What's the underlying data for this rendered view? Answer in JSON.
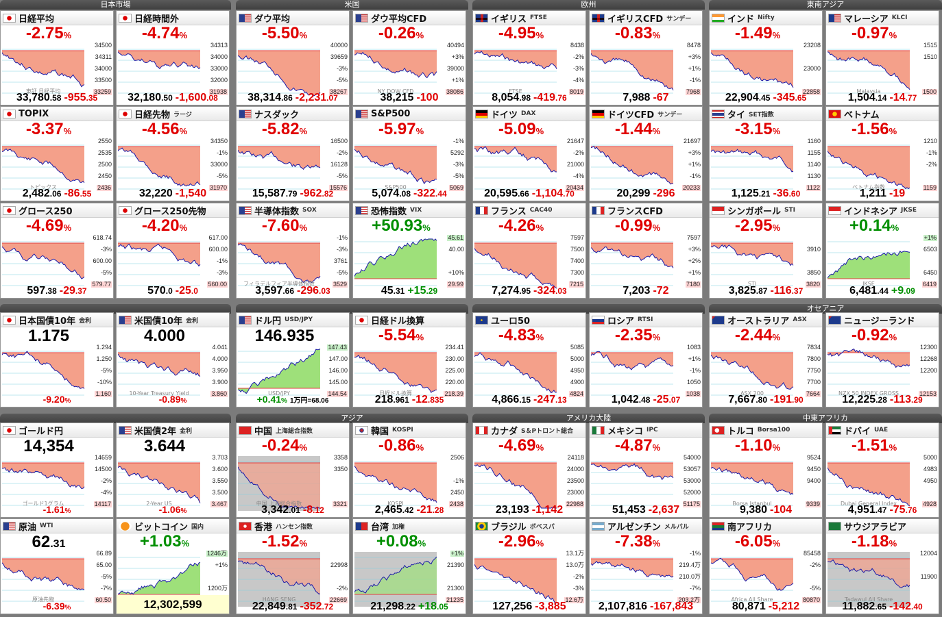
{
  "regions": [
    "日本市場",
    "米国",
    "欧州",
    "東南アジア",
    "オセアニア",
    "アジア",
    "アメリカ大陸",
    "中東アフリカ"
  ],
  "colors": {
    "up": "#008f00",
    "down": "#e00000",
    "fill_down": "#f4a08a",
    "fill_up": "#9ee07a",
    "line": "#1a1aa8"
  },
  "tiles": [
    {
      "name": "日経平均",
      "sub": "",
      "flag": "jp",
      "pct": "-2.75",
      "price": "33,780",
      "price_dec": ".58",
      "change": "-955",
      "change_dec": ".35",
      "ticks": [
        "34500",
        "34311",
        "34000",
        "33500",
        "33259"
      ],
      "watermark": "東証 日経平均",
      "dir": "down"
    },
    {
      "name": "日経時間外",
      "sub": "",
      "flag": "jp",
      "pct": "-4.74",
      "price": "32,180",
      "price_dec": ".50",
      "change": "-1,600",
      "change_dec": ".08",
      "ticks": [
        "34313",
        "34000",
        "33000",
        "32000",
        "31938"
      ],
      "watermark": "",
      "dir": "down"
    },
    {
      "name": "ダウ平均",
      "sub": "",
      "flag": "us",
      "pct": "-5.50",
      "price": "38,314",
      "price_dec": ".86",
      "change": "-2,231",
      "change_dec": ".07",
      "ticks": [
        "40000",
        "39659",
        "-3%",
        "-5%",
        "38267"
      ],
      "watermark": "",
      "dir": "down"
    },
    {
      "name": "ダウ平均CFD",
      "sub": "",
      "flag": "us",
      "pct": "-0.26",
      "price": "38,215",
      "price_dec": "",
      "change": "-100",
      "change_dec": "",
      "ticks": [
        "40494",
        "+3%",
        "39000",
        "+1%",
        "38086"
      ],
      "watermark": "NY DOW CFD",
      "dir": "down"
    },
    {
      "name": "イギリス",
      "sub": "FTSE",
      "flag": "uk",
      "pct": "-4.95",
      "price": "8,054",
      "price_dec": ".98",
      "change": "-419",
      "change_dec": ".76",
      "ticks": [
        "8438",
        "-2%",
        "-3%",
        "-4%",
        "8019"
      ],
      "watermark": "FTSE",
      "dir": "down"
    },
    {
      "name": "イギリスCFD",
      "sub": "サンデー",
      "flag": "uk",
      "pct": "-0.83",
      "price": "7,988",
      "price_dec": "",
      "change": "-67",
      "change_dec": "",
      "ticks": [
        "8478",
        "+3%",
        "+1%",
        "-1%",
        "7968"
      ],
      "watermark": "",
      "dir": "down"
    },
    {
      "name": "インド",
      "sub": "Nifty",
      "flag": "in",
      "pct": "-1.49",
      "price": "22,904",
      "price_dec": ".45",
      "change": "-345",
      "change_dec": ".65",
      "ticks": [
        "23208",
        "",
        "23000",
        "",
        "22858"
      ],
      "watermark": "",
      "dir": "down"
    },
    {
      "name": "マレーシア",
      "sub": "KLCI",
      "flag": "my",
      "pct": "-0.97",
      "price": "1,504",
      "price_dec": ".14",
      "change": "-14",
      "change_dec": ".77",
      "ticks": [
        "1515",
        "1510",
        "",
        "",
        "1500"
      ],
      "watermark": "Malaysia",
      "dir": "down"
    },
    {
      "name": "TOPIX",
      "sub": "",
      "flag": "jp",
      "pct": "-3.37",
      "price": "2,482",
      "price_dec": ".06",
      "change": "-86",
      "change_dec": ".55",
      "ticks": [
        "2550",
        "2535",
        "2500",
        "2450",
        "2436"
      ],
      "watermark": "トピックス",
      "dir": "down"
    },
    {
      "name": "日経先物",
      "sub": "ラージ",
      "flag": "jp",
      "pct": "-4.56",
      "price": "32,220",
      "price_dec": "",
      "change": "-1,540",
      "change_dec": "",
      "ticks": [
        "34350",
        "-1%",
        "33000",
        "-5%",
        "31970"
      ],
      "watermark": "",
      "dir": "down"
    },
    {
      "name": "ナスダック",
      "sub": "",
      "flag": "us",
      "pct": "-5.82",
      "price": "15,587",
      "price_dec": ".79",
      "change": "-962",
      "change_dec": ".82",
      "ticks": [
        "16500",
        "-2%",
        "16128",
        "-5%",
        "15576"
      ],
      "watermark": "",
      "dir": "down"
    },
    {
      "name": "S&P500",
      "sub": "",
      "flag": "us",
      "pct": "-5.97",
      "price": "5,074",
      "price_dec": ".08",
      "change": "-322",
      "change_dec": ".44",
      "ticks": [
        "-1%",
        "5292",
        "-3%",
        "-5%",
        "5069"
      ],
      "watermark": "S&P500",
      "dir": "down"
    },
    {
      "name": "ドイツ",
      "sub": "DAX",
      "flag": "de",
      "pct": "-5.09",
      "price": "20,595",
      "price_dec": ".66",
      "change": "-1,104",
      "change_dec": ".70",
      "ticks": [
        "21647",
        "-2%",
        "21000",
        "-4%",
        "20434"
      ],
      "watermark": "",
      "dir": "down"
    },
    {
      "name": "ドイツCFD",
      "sub": "サンデー",
      "flag": "de",
      "pct": "-1.44",
      "price": "20,299",
      "price_dec": "",
      "change": "-296",
      "change_dec": "",
      "ticks": [
        "21697",
        "+3%",
        "+1%",
        "-1%",
        "20233"
      ],
      "watermark": "",
      "dir": "down"
    },
    {
      "name": "タイ",
      "sub": "SET指数",
      "flag": "th",
      "pct": "-3.15",
      "price": "1,125",
      "price_dec": ".21",
      "change": "-36",
      "change_dec": ".60",
      "ticks": [
        "1160",
        "1155",
        "1140",
        "1130",
        "1122"
      ],
      "watermark": "",
      "dir": "down"
    },
    {
      "name": "ベトナム",
      "sub": "",
      "flag": "vn",
      "pct": "-1.56",
      "price": "1,211",
      "price_dec": "",
      "change": "-19",
      "change_dec": "",
      "ticks": [
        "1210",
        "-1%",
        "-2%",
        "",
        "1159"
      ],
      "watermark": "ベトナム指数",
      "dir": "down"
    },
    {
      "name": "グロース250",
      "sub": "",
      "flag": "jp",
      "pct": "-4.69",
      "price": "597",
      "price_dec": ".38",
      "change": "-29",
      "change_dec": ".37",
      "ticks": [
        "618.74",
        "-3%",
        "600.00",
        "-5%",
        "579.77"
      ],
      "watermark": "",
      "dir": "down"
    },
    {
      "name": "グロース250先物",
      "sub": "",
      "flag": "jp",
      "pct": "-4.20",
      "price": "570",
      "price_dec": ".0",
      "change": "-25",
      "change_dec": ".0",
      "ticks": [
        "617.00",
        "600.00",
        "-1%",
        "-3%",
        "560.00"
      ],
      "watermark": "",
      "dir": "down"
    },
    {
      "name": "半導体指数",
      "sub": "SOX",
      "flag": "us",
      "pct": "-7.60",
      "price": "3,597",
      "price_dec": ".66",
      "change": "-296",
      "change_dec": ".03",
      "ticks": [
        "-1%",
        "-3%",
        "3761",
        "-5%",
        "3529"
      ],
      "watermark": "フィラデルフィア半導体指数",
      "dir": "down"
    },
    {
      "name": "恐怖指数",
      "sub": "VIX",
      "flag": "us",
      "pct": "+50.93",
      "price": "45",
      "price_dec": ".31",
      "change": "+15",
      "change_dec": ".29",
      "ticks": [
        "45.61",
        "40.00",
        "",
        "+10%",
        "29.99"
      ],
      "watermark": "",
      "dir": "up"
    },
    {
      "name": "フランス",
      "sub": "CAC40",
      "flag": "fr",
      "pct": "-4.26",
      "price": "7,274",
      "price_dec": ".95",
      "change": "-324",
      "change_dec": ".03",
      "ticks": [
        "7597",
        "7500",
        "7400",
        "7300",
        "7215"
      ],
      "watermark": "",
      "dir": "down"
    },
    {
      "name": "フランスCFD",
      "sub": "",
      "flag": "fr",
      "pct": "-0.99",
      "price": "7,203",
      "price_dec": "",
      "change": "-72",
      "change_dec": "",
      "ticks": [
        "7597",
        "+3%",
        "+2%",
        "+1%",
        "7180"
      ],
      "watermark": "",
      "dir": "down"
    },
    {
      "name": "シンガポール",
      "sub": "STI",
      "flag": "sg",
      "pct": "-2.95",
      "price": "3,825",
      "price_dec": ".87",
      "change": "-116",
      "change_dec": ".37",
      "ticks": [
        "",
        "3910",
        "",
        "3850",
        "3820"
      ],
      "watermark": "STI",
      "dir": "down"
    },
    {
      "name": "インドネシア",
      "sub": "JKSE",
      "flag": "id",
      "pct": "+0.14",
      "price": "6,481",
      "price_dec": ".44",
      "change": "+9",
      "change_dec": ".09",
      "ticks": [
        "+1%",
        "6503",
        "",
        "6450",
        "6419"
      ],
      "watermark": "JKSE",
      "dir": "up"
    },
    {
      "name": "日本国債10年",
      "sub": "金利",
      "flag": "jp",
      "yield": "1.175",
      "ticks": [
        "1.294",
        "1.250",
        "-5%",
        "-10%",
        "1.160"
      ],
      "bottom_pct": "-9.20",
      "watermark": "",
      "dir": "down"
    },
    {
      "name": "米国債10年",
      "sub": "金利",
      "flag": "us",
      "yield": "4.000",
      "ticks": [
        "4.041",
        "4.000",
        "3.950",
        "3.900",
        "3.860"
      ],
      "bottom_pct": "-0.89",
      "watermark": "10-Year Treasury Yield",
      "dir": "down"
    },
    {
      "name": "ドル円",
      "sub": "USD/JPY",
      "flag": "us",
      "yield": "146.935",
      "ticks": [
        "147.43",
        "147.00",
        "146.00",
        "145.00",
        "144.54"
      ],
      "bottom_pct": "+0.41",
      "extra": "1万円=68.06",
      "watermark": "USD/JPY",
      "dir": "up"
    },
    {
      "name": "日経ドル換算",
      "sub": "",
      "flag": "jp",
      "pct": "-5.54",
      "price": "218",
      "price_dec": ".961",
      "change": "-12",
      "change_dec": ".835",
      "ticks": [
        "234.41",
        "230.00",
        "225.00",
        "220.00",
        "218.39"
      ],
      "watermark": "日経ドル換算",
      "dir": "down"
    },
    {
      "name": "ユーロ50",
      "sub": "",
      "flag": "eu",
      "pct": "-4.83",
      "price": "4,866",
      "price_dec": ".15",
      "change": "-247",
      "change_dec": ".13",
      "ticks": [
        "5085",
        "5000",
        "4950",
        "4900",
        "4824"
      ],
      "watermark": "",
      "dir": "down"
    },
    {
      "name": "ロシア",
      "sub": "RTSI",
      "flag": "ru",
      "pct": "-2.35",
      "price": "1,042",
      "price_dec": ".48",
      "change": "-25",
      "change_dec": ".07",
      "ticks": [
        "1083",
        "+1%",
        "-1%",
        "1050",
        "1038"
      ],
      "watermark": "",
      "dir": "down"
    },
    {
      "name": "オーストラリア",
      "sub": "ASX",
      "flag": "au",
      "pct": "-2.44",
      "price": "7,667",
      "price_dec": ".80",
      "change": "-191",
      "change_dec": ".90",
      "ticks": [
        "7834",
        "7800",
        "7750",
        "7700",
        "7664"
      ],
      "watermark": "ASX 200",
      "dir": "down"
    },
    {
      "name": "ニュージーランド",
      "sub": "",
      "flag": "nz",
      "pct": "-0.92",
      "price": "12,225",
      "price_dec": ".28",
      "change": "-113",
      "change_dec": ".29",
      "ticks": [
        "12300",
        "12268",
        "12200",
        "",
        "12153"
      ],
      "watermark": "NZX 50 INDEX GROSS",
      "dir": "down"
    },
    {
      "name": "ゴールド円",
      "sub": "",
      "flag": "jp",
      "yield": "14,354",
      "ticks": [
        "14659",
        "14500",
        "-2%",
        "-4%",
        "14117"
      ],
      "bottom_pct": "-1.61",
      "watermark": "ゴールド1グラム",
      "dir": "down"
    },
    {
      "name": "米国債2年",
      "sub": "金利",
      "flag": "us",
      "yield": "3.644",
      "ticks": [
        "3.703",
        "3.600",
        "3.550",
        "3.500",
        "3.467"
      ],
      "bottom_pct": "-1.06",
      "watermark": "2-Year US",
      "dir": "down"
    },
    {
      "name": "中国",
      "sub": "上海総合指数",
      "flag": "cn",
      "pct": "-0.24",
      "price": "3,342",
      "price_dec": ".01",
      "change": "-8",
      "change_dec": ".12",
      "ticks": [
        "3358",
        "3350",
        "",
        "",
        "3321"
      ],
      "watermark": "中国 上海総合指数",
      "dir": "down",
      "grey": true
    },
    {
      "name": "韓国",
      "sub": "KOSPI",
      "flag": "kr",
      "pct": "-0.86",
      "price": "2,465",
      "price_dec": ".42",
      "change": "-21",
      "change_dec": ".28",
      "ticks": [
        "2506",
        "",
        "-1%",
        "2450",
        "2438"
      ],
      "watermark": "KOSPI",
      "dir": "down"
    },
    {
      "name": "カナダ",
      "sub": "S＆Pトロント総合",
      "flag": "ca",
      "pct": "-4.69",
      "price": "23,193",
      "price_dec": "",
      "change": "-1,142",
      "change_dec": "",
      "ticks": [
        "24118",
        "24000",
        "23500",
        "23000",
        "22988"
      ],
      "watermark": "",
      "dir": "down"
    },
    {
      "name": "メキシコ",
      "sub": "IPC",
      "flag": "mx",
      "pct": "-4.87",
      "price": "51,453",
      "price_dec": "",
      "change": "-2,637",
      "change_dec": "",
      "ticks": [
        "54000",
        "53057",
        "53000",
        "52000",
        "51175"
      ],
      "watermark": "",
      "dir": "down"
    },
    {
      "name": "トルコ",
      "sub": "Borsa100",
      "flag": "tr",
      "pct": "-1.10",
      "price": "9,380",
      "price_dec": "",
      "change": "-104",
      "change_dec": "",
      "ticks": [
        "9524",
        "9450",
        "9400",
        "",
        "9339"
      ],
      "watermark": "Borsa Istanbul",
      "dir": "down"
    },
    {
      "name": "ドバイ",
      "sub": "UAE",
      "flag": "ae",
      "pct": "-1.51",
      "price": "4,951",
      "price_dec": ".47",
      "change": "-75",
      "change_dec": ".76",
      "ticks": [
        "5000",
        "4983",
        "4950",
        "",
        "4928"
      ],
      "watermark": "Dubai General Index",
      "dir": "down"
    },
    {
      "name": "原油",
      "sub": "WTI",
      "flag": "us",
      "yield": "62",
      "yield_dec": ".31",
      "ticks": [
        "66.89",
        "65.00",
        "-5%",
        "-7%",
        "60.50"
      ],
      "bottom_pct": "-6.39",
      "watermark": "原油先物",
      "dir": "down"
    },
    {
      "name": "ビットコイン",
      "sub": "国内",
      "flag": "btc",
      "pct": "+1.03",
      "ticks": [
        "1246万",
        "+1%",
        "",
        "1200万",
        "1182万"
      ],
      "btc_price": "12,302,599",
      "watermark": "coincheck BTC/JPY",
      "dir": "up"
    },
    {
      "name": "香港",
      "sub": "ハンセン指数",
      "flag": "hk",
      "pct": "-1.52",
      "price": "22,849",
      "price_dec": ".81",
      "change": "-352",
      "change_dec": ".72",
      "ticks": [
        "",
        "22998",
        "",
        "-2%",
        "22669"
      ],
      "watermark": "HANG SENG",
      "dir": "down",
      "grey": true
    },
    {
      "name": "台湾",
      "sub": "加権",
      "flag": "tw",
      "pct": "+0.08",
      "price": "21,298",
      "price_dec": ".22",
      "change": "+18",
      "change_dec": ".05",
      "ticks": [
        "+1%",
        "21390",
        "",
        "21300",
        "21235"
      ],
      "watermark": "",
      "dir": "up",
      "grey": true
    },
    {
      "name": "ブラジル",
      "sub": "ボベスパ",
      "flag": "br",
      "pct": "-2.96",
      "price": "127,256",
      "price_dec": "",
      "change": "-3,885",
      "change_dec": "",
      "ticks": [
        "13.1万",
        "13.0万",
        "-2%",
        "-3%",
        "12.6万"
      ],
      "watermark": "",
      "dir": "down"
    },
    {
      "name": "アルゼンチン",
      "sub": "メルバル",
      "flag": "ar",
      "pct": "-7.38",
      "price": "2,107,816",
      "price_dec": "",
      "change": "-167,843",
      "change_dec": "",
      "ticks": [
        "-1%",
        "219.4万",
        "210.0万",
        "-7%",
        "203.2万"
      ],
      "watermark": "",
      "dir": "down"
    },
    {
      "name": "南アフリカ",
      "sub": "",
      "flag": "za",
      "pct": "-6.05",
      "price": "80,871",
      "price_dec": "",
      "change": "-5,212",
      "change_dec": "",
      "ticks": [
        "85458",
        "-2%",
        "",
        "-5%",
        "80870"
      ],
      "watermark": "Africa All Share",
      "dir": "down"
    },
    {
      "name": "サウジアラビア",
      "sub": "",
      "flag": "sa",
      "pct": "-1.18",
      "price": "11,882",
      "price_dec": ".65",
      "change": "-142",
      "change_dec": ".40",
      "ticks": [
        "12004",
        "",
        "11900",
        "",
        ""
      ],
      "watermark": "Tadawul All Share",
      "dir": "down",
      "grey": true
    }
  ]
}
